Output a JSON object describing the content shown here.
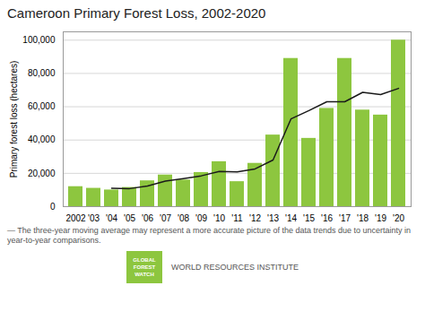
{
  "chart_data": {
    "type": "bar",
    "title": "Cameroon Primary Forest Loss, 2002-2020",
    "categories": [
      "2002",
      "'03",
      "'04",
      "'05",
      "'06",
      "'07",
      "'08",
      "'09",
      "'10",
      "'11",
      "'12",
      "'13",
      "'14",
      "'15",
      "'16",
      "'17",
      "'18",
      "'19",
      "'20"
    ],
    "series": [
      {
        "type": "bar",
        "color": "#8dc63f",
        "values": [
          12000,
          11000,
          10000,
          11500,
          15500,
          19000,
          16000,
          20500,
          27000,
          15000,
          26000,
          43000,
          89000,
          41000,
          59000,
          89000,
          58000,
          55000,
          100000
        ]
      },
      {
        "type": "line",
        "color": "#1a1a1a",
        "values": [
          null,
          null,
          11000,
          10833,
          12333,
          15333,
          16833,
          18500,
          21167,
          20833,
          22667,
          28000,
          52667,
          57667,
          63000,
          63000,
          68667,
          67333,
          71000
        ]
      }
    ],
    "ylabel": "Primary forest loss (hectares)",
    "ylim": [
      0,
      105000
    ],
    "yticks": [
      0,
      {
        "value": 20000,
        "label": "20,000"
      },
      {
        "value": 40000,
        "label": "40,000"
      },
      {
        "value": 60000,
        "label": "60,000"
      },
      {
        "value": 80000,
        "label": "80,000"
      },
      {
        "value": 100000,
        "label": "100,000"
      }
    ],
    "grid": true,
    "annotations": [
      "—  The three-year moving average may represent a more accurate picture of the data trends due to uncertainty in",
      "year-to-year comparisons.",
      "GLOBAL\nFOREST\nWATCH",
      "WORLD RESOURCES INSTITUTE"
    ]
  }
}
